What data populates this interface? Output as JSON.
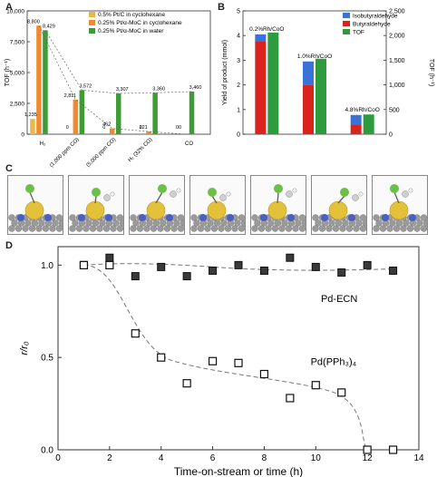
{
  "panels": {
    "a": "A",
    "b": "B",
    "c": "C",
    "d": "D"
  },
  "chart_data": [
    {
      "type": "bar",
      "ylabel": "TOF (h⁻¹)",
      "ylim": [
        0,
        10000
      ],
      "yticks": [
        0,
        2500,
        5000,
        7500,
        10000
      ],
      "ytick_labels": [
        "0",
        "2,500",
        "5,000",
        "7,500",
        "10,000"
      ],
      "categories": [
        "H₂",
        "H₂ (1,000 ppm CO)",
        "H₂ (5,000 ppm CO)",
        "H₂ (32% CO)",
        "CO"
      ],
      "series": [
        {
          "name": "0.5% Pt/C in cyclohexane",
          "color": "#e8b84a",
          "values": [
            1235,
            0,
            0,
            0,
            0
          ],
          "labels": [
            "1,235",
            "0",
            "0",
            "0",
            "0"
          ]
        },
        {
          "name": "0.25% Pt/α-MoC in cyclohexane",
          "color": "#ef8a2e",
          "values": [
            8800,
            2811,
            462,
            221,
            0
          ],
          "labels": [
            "8,800",
            "2,811",
            "462",
            "221",
            "0"
          ]
        },
        {
          "name": "0.25% Pt/α-MoC in water",
          "color": "#3f9b35",
          "values": [
            8429,
            3572,
            3307,
            3360,
            3460
          ],
          "labels": [
            "8,429",
            "3,572",
            "3,307",
            "3,360",
            "3,460"
          ]
        }
      ],
      "legend_position": "top-right"
    },
    {
      "type": "bar",
      "ylabel": "Yield of product (mmol)",
      "ylabel_right": "TOF (h⁻¹)",
      "ylim": [
        0,
        5
      ],
      "ylim_right": [
        0,
        2500
      ],
      "yticks": [
        0,
        1,
        2,
        3,
        4,
        5
      ],
      "yticks_right": [
        0,
        500,
        1000,
        1500,
        2000,
        2500
      ],
      "ytick_right_labels": [
        "0",
        "500",
        "1,000",
        "1,500",
        "2,000",
        "2,500"
      ],
      "categories": [
        "0.2%Rh/CoO",
        "1.0%Rh/CoO",
        "4.8%Rh/CoO"
      ],
      "series": [
        {
          "name": "Isobutyraldehyde",
          "color": "#3a73d8",
          "values": [
            0.3,
            0.95,
            0.38
          ]
        },
        {
          "name": "Butyraldehyde",
          "color": "#d9241e",
          "values": [
            3.75,
            2.0,
            0.4
          ]
        },
        {
          "name": "TOF",
          "color": "#2e9b3e",
          "axis": "right",
          "values": [
            2060,
            1530,
            400
          ]
        }
      ],
      "legend_position": "top-right"
    },
    {
      "type": "scatter",
      "xlabel": "Time-on-stream or time (h)",
      "ylabel": "r/r₀",
      "xlim": [
        0,
        14
      ],
      "ylim": [
        0,
        1.1
      ],
      "xticks": [
        0,
        2,
        4,
        6,
        8,
        10,
        12,
        14
      ],
      "yticks": [
        0.0,
        0.5,
        1.0
      ],
      "ytick_labels": [
        "0.0",
        "0.5",
        "1.0"
      ],
      "series": [
        {
          "name": "Pd-ECN",
          "style": "filled-square",
          "x": [
            1,
            2,
            3,
            4,
            5,
            6,
            7,
            8,
            9,
            10,
            11,
            12,
            13
          ],
          "y": [
            1.0,
            1.04,
            0.94,
            0.99,
            0.94,
            0.97,
            1.0,
            0.97,
            1.04,
            0.99,
            0.96,
            1.0,
            0.97
          ]
        },
        {
          "name": "Pd(PPh₃)₄",
          "style": "open-square",
          "x": [
            1,
            2,
            3,
            4,
            5,
            6,
            7,
            8,
            9,
            10,
            11,
            12,
            13
          ],
          "y": [
            1.0,
            1.0,
            0.63,
            0.5,
            0.36,
            0.48,
            0.47,
            0.41,
            0.28,
            0.35,
            0.31,
            0.0,
            0.0
          ]
        }
      ],
      "annotations": [
        "Pd-ECN",
        "Pd(PPh₃)₄"
      ]
    }
  ]
}
